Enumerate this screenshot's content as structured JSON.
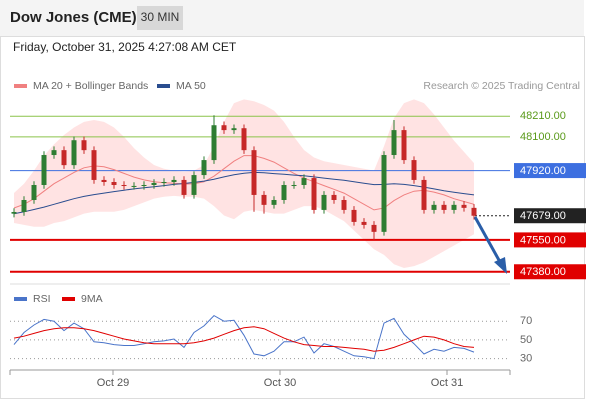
{
  "header": {
    "title": "Dow Jones (CME)",
    "timeframe": "30 MIN",
    "datetime": "Friday, October 31, 2025 4:27:08 AM CET"
  },
  "chart_data": [
    {
      "type": "candlestick",
      "source": "Research © 2025 Trading Central",
      "ylim": [
        47320,
        48350
      ],
      "xlim": [
        -0.4,
        49.6
      ],
      "up_color": "#2e7d32",
      "down_color": "#c62828",
      "open": [
        47690,
        47699,
        47763,
        47843,
        48003,
        48029,
        47949,
        48082,
        48029,
        47870,
        47859,
        47843,
        47838,
        47838,
        47843,
        47854,
        47859,
        47870,
        47790,
        47896,
        47976,
        48162,
        48136,
        48146,
        48029,
        47790,
        47737,
        47763,
        47843,
        47843,
        47880,
        47710,
        47790,
        47763,
        47710,
        47646,
        47630,
        47593,
        48003,
        48136,
        47976,
        47870,
        47710,
        47737,
        47710,
        47737,
        47721
      ],
      "high": [
        47719,
        47783,
        47863,
        48023,
        48049,
        48049,
        48102,
        48102,
        48049,
        47890,
        47879,
        47863,
        47858,
        47863,
        47874,
        47879,
        47890,
        47890,
        47916,
        47996,
        48215,
        48182,
        48166,
        48166,
        48049,
        47810,
        47783,
        47863,
        47863,
        47900,
        47900,
        47810,
        47810,
        47783,
        47730,
        47666,
        47650,
        48023,
        48190,
        48156,
        47996,
        47890,
        47757,
        47757,
        47757,
        47757,
        47741
      ],
      "low": [
        47670,
        47679,
        47743,
        47823,
        47983,
        47929,
        47929,
        48009,
        47850,
        47839,
        47823,
        47818,
        47818,
        47818,
        47823,
        47834,
        47839,
        47770,
        47770,
        47876,
        47956,
        48116,
        48116,
        48009,
        47700,
        47690,
        47717,
        47743,
        47823,
        47823,
        47690,
        47690,
        47743,
        47690,
        47626,
        47610,
        47550,
        47573,
        47983,
        47956,
        47850,
        47690,
        47690,
        47690,
        47690,
        47701,
        47659
      ],
      "close": [
        47699,
        47763,
        47843,
        48003,
        48029,
        47949,
        48082,
        48029,
        47870,
        47859,
        47843,
        47838,
        47838,
        47843,
        47854,
        47859,
        47870,
        47790,
        47896,
        47976,
        48162,
        48136,
        48146,
        48029,
        47790,
        47737,
        47763,
        47843,
        47843,
        47880,
        47710,
        47790,
        47763,
        47710,
        47646,
        47630,
        47593,
        48003,
        48136,
        47976,
        47870,
        47710,
        47737,
        47710,
        47737,
        47721,
        47679
      ],
      "bands": {
        "color": "#ffdede",
        "upper": [
          47800,
          47850,
          47920,
          48000,
          48060,
          48110,
          48150,
          48180,
          48190,
          48180,
          48150,
          48100,
          48040,
          47990,
          47950,
          47930,
          47920,
          47915,
          47920,
          47950,
          48050,
          48180,
          48280,
          48300,
          48290,
          48270,
          48240,
          48180,
          48100,
          48030,
          47990,
          47970,
          47960,
          47950,
          47940,
          47930,
          47920,
          48050,
          48200,
          48280,
          48300,
          48280,
          48220,
          48150,
          48080,
          48020,
          47960
        ],
        "lower": [
          47640,
          47630,
          47620,
          47620,
          47640,
          47650,
          47670,
          47690,
          47700,
          47700,
          47700,
          47710,
          47730,
          47750,
          47770,
          47780,
          47785,
          47780,
          47780,
          47770,
          47730,
          47680,
          47660,
          47700,
          47710,
          47700,
          47690,
          47690,
          47710,
          47730,
          47730,
          47710,
          47680,
          47650,
          47600,
          47550,
          47500,
          47470,
          47420,
          47400,
          47410,
          47430,
          47460,
          47490,
          47520,
          47550,
          47580
        ]
      },
      "series": [
        {
          "name": "MA 20 + Bollinger Bands",
          "color": "#f08080",
          "values": [
            47720,
            47740,
            47770,
            47810,
            47850,
            47880,
            47910,
            47935,
            47945,
            47940,
            47925,
            47905,
            47885,
            47870,
            47860,
            47855,
            47852,
            47848,
            47850,
            47860,
            47890,
            47930,
            47970,
            48000,
            48000,
            47985,
            47965,
            47935,
            47905,
            47880,
            47860,
            47840,
            47820,
            47800,
            47770,
            47740,
            47710,
            47720,
            47760,
            47790,
            47810,
            47815,
            47805,
            47790,
            47770,
            47755,
            47740
          ]
        },
        {
          "name": "MA 50",
          "color": "#2a4d8f",
          "values": [
            47690,
            47700,
            47712,
            47725,
            47740,
            47755,
            47770,
            47782,
            47792,
            47800,
            47808,
            47815,
            47822,
            47828,
            47834,
            47840,
            47846,
            47851,
            47857,
            47864,
            47874,
            47886,
            47898,
            47906,
            47910,
            47908,
            47904,
            47900,
            47896,
            47892,
            47886,
            47880,
            47874,
            47868,
            47860,
            47852,
            47845,
            47846,
            47850,
            47846,
            47840,
            47832,
            47822,
            47812,
            47804,
            47797,
            47790
          ]
        }
      ],
      "levels": [
        {
          "value": 48210,
          "label": "48210.00",
          "color": "#8bc34a",
          "style": "text"
        },
        {
          "value": 48100,
          "label": "48100.00",
          "color": "#8bc34a",
          "style": "text"
        },
        {
          "value": 47920,
          "label": "47920.00",
          "color": "#3d6fe0",
          "style": "box"
        },
        {
          "value": 47679,
          "label": "47679.00",
          "color": "#222222",
          "style": "current"
        },
        {
          "value": 47550,
          "label": "47550.00",
          "color": "#e00000",
          "style": "box"
        },
        {
          "value": 47380,
          "label": "47380.00",
          "color": "#e00000",
          "style": "box"
        }
      ]
    },
    {
      "type": "line",
      "ylim": [
        20,
        82
      ],
      "yticks": [
        30,
        50,
        70
      ],
      "xticks": [
        {
          "value": 9.9,
          "label": "Oct 29"
        },
        {
          "value": 26.6,
          "label": "Oct 30"
        },
        {
          "value": 43.3,
          "label": "Oct 31"
        }
      ],
      "series": [
        {
          "name": "RSI",
          "color": "#4a74c9",
          "values": [
            45,
            58,
            66,
            72,
            70,
            60,
            68,
            62,
            48,
            47,
            45,
            44,
            44,
            46,
            48,
            49,
            51,
            42,
            58,
            65,
            76,
            70,
            71,
            55,
            35,
            33,
            38,
            48,
            48,
            53,
            36,
            46,
            43,
            38,
            33,
            32,
            30,
            68,
            73,
            56,
            46,
            35,
            40,
            38,
            42,
            41,
            37
          ]
        },
        {
          "name": "9MA",
          "color": "#e00000",
          "values": [
            52,
            54,
            57,
            60,
            62,
            63,
            63,
            62,
            60,
            57,
            54,
            51,
            49,
            47,
            46,
            46,
            46,
            46,
            47,
            49,
            52,
            56,
            60,
            63,
            64,
            62,
            57,
            52,
            48,
            45,
            44,
            43,
            43,
            42,
            41,
            40,
            38,
            39,
            42,
            46,
            50,
            54,
            53,
            50,
            46,
            43,
            42
          ]
        }
      ]
    }
  ]
}
